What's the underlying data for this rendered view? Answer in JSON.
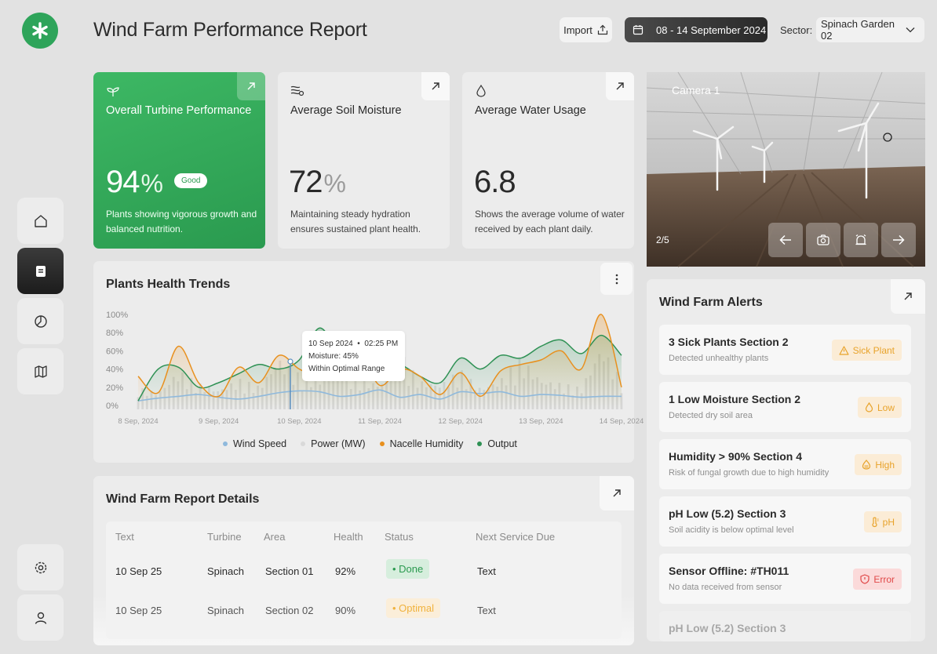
{
  "header": {
    "title": "Wind Farm Performance Report",
    "import_label": "Import",
    "date_range": "08 - 14 September 2024",
    "sector_label": "Sector:",
    "sector_value": "Spinach Garden 02"
  },
  "stats": [
    {
      "label": "Overall Turbine Performance",
      "value": "94",
      "unit": "%",
      "badge": "Good",
      "desc": "Plants showing vigorous growth and balanced nutrition."
    },
    {
      "label": "Average Soil Moisture",
      "value": "72",
      "unit": "%",
      "desc": "Maintaining steady hydration ensures sustained plant health."
    },
    {
      "label": "Average Water Usage",
      "value": "6.8",
      "unit": "",
      "desc": "Shows the average volume of water received by each plant daily."
    }
  ],
  "camera": {
    "label": "Camera 1",
    "count": "2/5"
  },
  "trends": {
    "title": "Plants Health Trends",
    "tooltip": {
      "date": "10 Sep 2024",
      "time": "02:25 PM",
      "moisture": "Moisture: 45%",
      "status": "Within Optimal Range"
    }
  },
  "chart_data": {
    "type": "line",
    "title": "Plants Health Trends",
    "y_ticks": [
      "100%",
      "80%",
      "60%",
      "40%",
      "20%",
      "0%"
    ],
    "x_ticks": [
      "8 Sep, 2024",
      "9 Sep, 2024",
      "10 Sep, 2024",
      "11 Sep, 2024",
      "12 Sep, 2024",
      "13 Sep, 2024",
      "14 Sep, 2024"
    ],
    "ylim": [
      0,
      100
    ],
    "x": [
      0,
      0.25,
      0.5,
      0.75,
      1,
      1.25,
      1.5,
      1.75,
      2,
      2.25,
      2.5,
      2.75,
      3,
      3.25,
      3.5,
      3.75,
      4,
      4.25,
      4.5,
      4.75,
      5,
      5.25,
      5.5,
      5.75,
      6
    ],
    "series": [
      {
        "name": "Wind Speed",
        "color": "#8fb9dc",
        "values": [
          5,
          8,
          10,
          12,
          9,
          7,
          10,
          14,
          16,
          15,
          10,
          12,
          17,
          9,
          12,
          7,
          15,
          13,
          15,
          10,
          12,
          11,
          9,
          10,
          10
        ]
      },
      {
        "name": "Power (MW)",
        "color": "#d6d6d6",
        "values": [
          20,
          15,
          40,
          25,
          18,
          30,
          22,
          55,
          35,
          30,
          45,
          30,
          25,
          60,
          28,
          25,
          40,
          20,
          30,
          55,
          30,
          25,
          20,
          70,
          28
        ]
      },
      {
        "name": "Nacelle Humidity",
        "color": "#e8901e",
        "values": [
          32,
          14,
          65,
          25,
          10,
          42,
          25,
          55,
          40,
          32,
          45,
          57,
          22,
          40,
          32,
          12,
          36,
          10,
          38,
          45,
          50,
          60,
          40,
          100,
          20
        ]
      },
      {
        "name": "Output",
        "color": "#2e9154",
        "values": [
          5,
          40,
          42,
          20,
          25,
          35,
          45,
          40,
          50,
          85,
          60,
          70,
          45,
          45,
          32,
          25,
          52,
          40,
          55,
          52,
          65,
          72,
          57,
          77,
          55
        ]
      }
    ]
  },
  "report": {
    "title": "Wind Farm Report Details",
    "columns": [
      "Text",
      "Turbine",
      "Area",
      "Health",
      "Status",
      "Next Service Due"
    ],
    "rows": [
      {
        "date": "10 Sep 25",
        "turbine": "Spinach",
        "area": "Section 01",
        "health": "92%",
        "status": "Done",
        "next": "Text"
      },
      {
        "date": "10 Sep 25",
        "turbine": "Spinach",
        "area": "Section 02",
        "health": "90%",
        "status": "Optimal",
        "next": "Text"
      }
    ]
  },
  "alerts": {
    "title": "Wind Farm Alerts",
    "items": [
      {
        "title": "3 Sick Plants Section 2",
        "desc": "Detected unhealthy plants",
        "badge": "Sick Plant",
        "kind": "warn"
      },
      {
        "title": "1 Low Moisture Section 2",
        "desc": "Detected dry soil area",
        "badge": "Low",
        "kind": "warn"
      },
      {
        "title": "Humidity > 90% Section 4",
        "desc": "Risk of fungal growth due to high humidity",
        "badge": "High",
        "kind": "warn"
      },
      {
        "title": "pH Low (5.2) Section 3",
        "desc": "Soil acidity is below optimal level",
        "badge": "pH",
        "kind": "warn"
      },
      {
        "title": "Sensor Offline: #TH011",
        "desc": "No data received from sensor",
        "badge": "Error",
        "kind": "err"
      },
      {
        "title": "pH Low (5.2) Section 3",
        "desc": "",
        "badge": "",
        "kind": "warn"
      }
    ]
  }
}
